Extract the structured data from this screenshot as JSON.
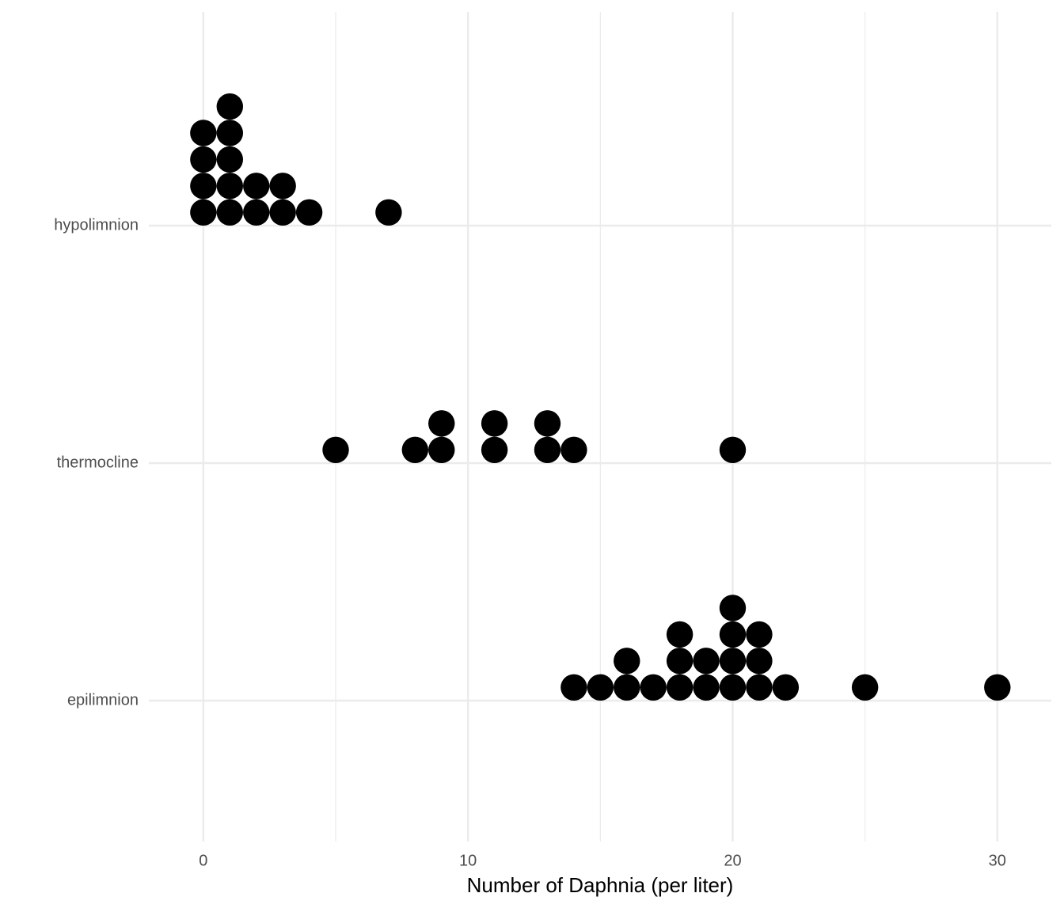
{
  "chart_data": {
    "type": "dotplot",
    "xlabel": "Number of Daphnia (per liter)",
    "categories": [
      "hypolimnion",
      "thermocline",
      "epilimnion"
    ],
    "values": [
      [
        0,
        0,
        0,
        0,
        1,
        1,
        1,
        1,
        1,
        2,
        2,
        3,
        3,
        4,
        7
      ],
      [
        5,
        8,
        9,
        9,
        11,
        11,
        13,
        13,
        14,
        20
      ],
      [
        14,
        15,
        16,
        16,
        17,
        18,
        18,
        18,
        19,
        19,
        20,
        20,
        20,
        20,
        21,
        21,
        21,
        22,
        25,
        30
      ]
    ],
    "binwidth": 1,
    "color": "#000000",
    "xlim": [
      -2.06,
      32.04
    ],
    "xticks": [
      0,
      10,
      20,
      30
    ],
    "minor_xticks": [
      5,
      15,
      25
    ],
    "grid": true
  }
}
